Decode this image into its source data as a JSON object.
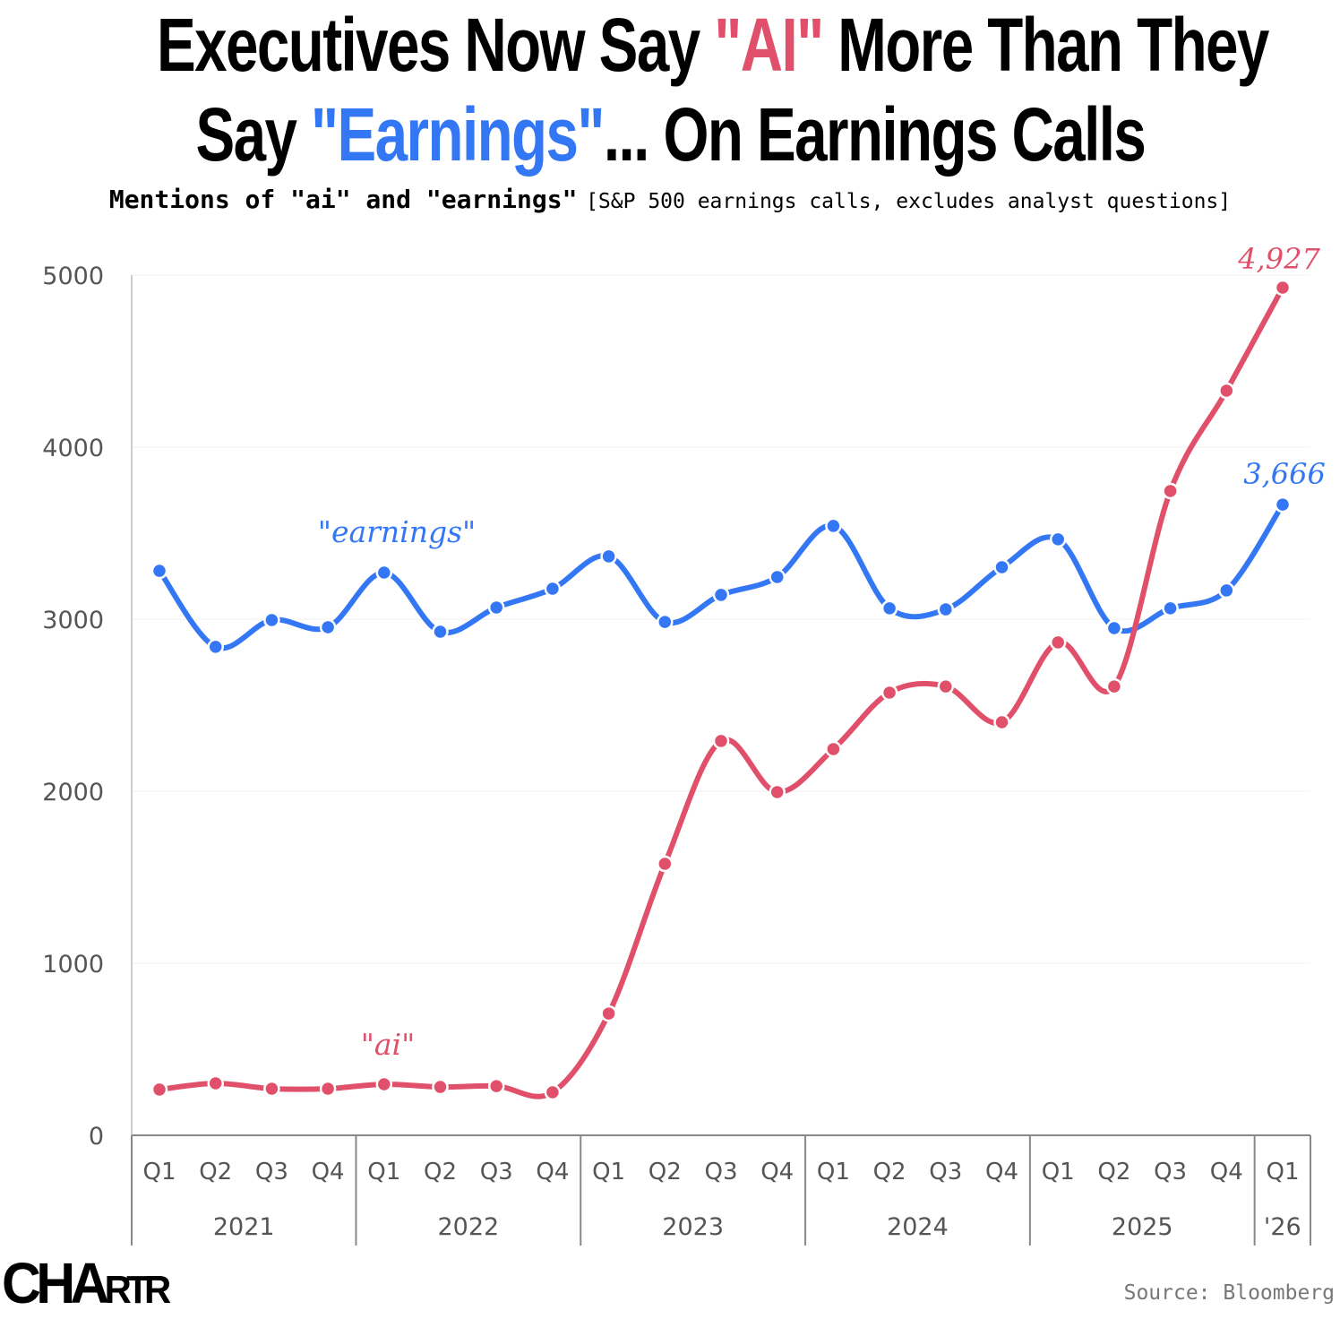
{
  "title": {
    "line1_a": "Executives Now Say ",
    "line1_ai": "\"AI\"",
    "line1_b": " More Than They",
    "line2_a": "Say ",
    "line2_earnings": "\"Earnings\"",
    "line2_b": "... On Earnings Calls"
  },
  "subtitle": {
    "bold": "Mentions of \"ai\" and \"earnings\"",
    "note": "[S&P 500 earnings calls, excludes analyst questions]"
  },
  "logo": "CHARTR",
  "source": "Source: Bloomberg",
  "colors": {
    "ai": "#e0506a",
    "earnings": "#3377f5"
  },
  "chart_data": {
    "type": "line",
    "ylim": [
      0,
      5000
    ],
    "yticks": [
      "0",
      "1000",
      "2000",
      "3000",
      "4000",
      "5000"
    ],
    "grid": true,
    "quarters": [
      "Q1",
      "Q2",
      "Q3",
      "Q4",
      "Q1",
      "Q2",
      "Q3",
      "Q4",
      "Q1",
      "Q2",
      "Q3",
      "Q4",
      "Q1",
      "Q2",
      "Q3",
      "Q4",
      "Q1",
      "Q2",
      "Q3",
      "Q4",
      "Q1"
    ],
    "years": [
      {
        "label": "2021",
        "count": 4
      },
      {
        "label": "2022",
        "count": 4
      },
      {
        "label": "2023",
        "count": 4
      },
      {
        "label": "2024",
        "count": 4
      },
      {
        "label": "2025",
        "count": 4
      },
      {
        "label": "'26",
        "count": 1
      }
    ],
    "series": [
      {
        "name": "\"earnings\"",
        "key": "earnings",
        "end_label": "3,666",
        "values": [
          3281,
          2839,
          2995,
          2953,
          3271,
          2927,
          3068,
          3177,
          3365,
          2984,
          3141,
          3245,
          3542,
          3063,
          3057,
          3302,
          3464,
          2948,
          3063,
          3167,
          3666
        ]
      },
      {
        "name": "\"ai\"",
        "key": "ai",
        "end_label": "4,927",
        "values": [
          266,
          302,
          271,
          271,
          297,
          281,
          286,
          250,
          708,
          1578,
          2292,
          1995,
          2245,
          2573,
          2609,
          2401,
          2865,
          2609,
          3745,
          4328,
          4927
        ]
      }
    ]
  }
}
